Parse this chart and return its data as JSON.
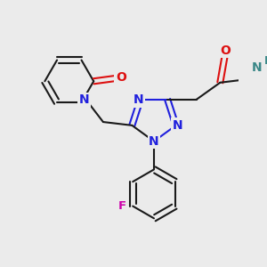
{
  "background_color": "#ebebeb",
  "bond_color": "#1a1a1a",
  "N_color": "#2020dd",
  "O_color": "#dd1010",
  "F_color": "#cc00aa",
  "H_color": "#3a8888",
  "bond_width": 1.5,
  "font_size": 10,
  "fig_width": 3.0,
  "fig_height": 3.0,
  "dpi": 100,
  "xlim": [
    -2.5,
    4.5
  ],
  "ylim": [
    -4.0,
    3.5
  ]
}
